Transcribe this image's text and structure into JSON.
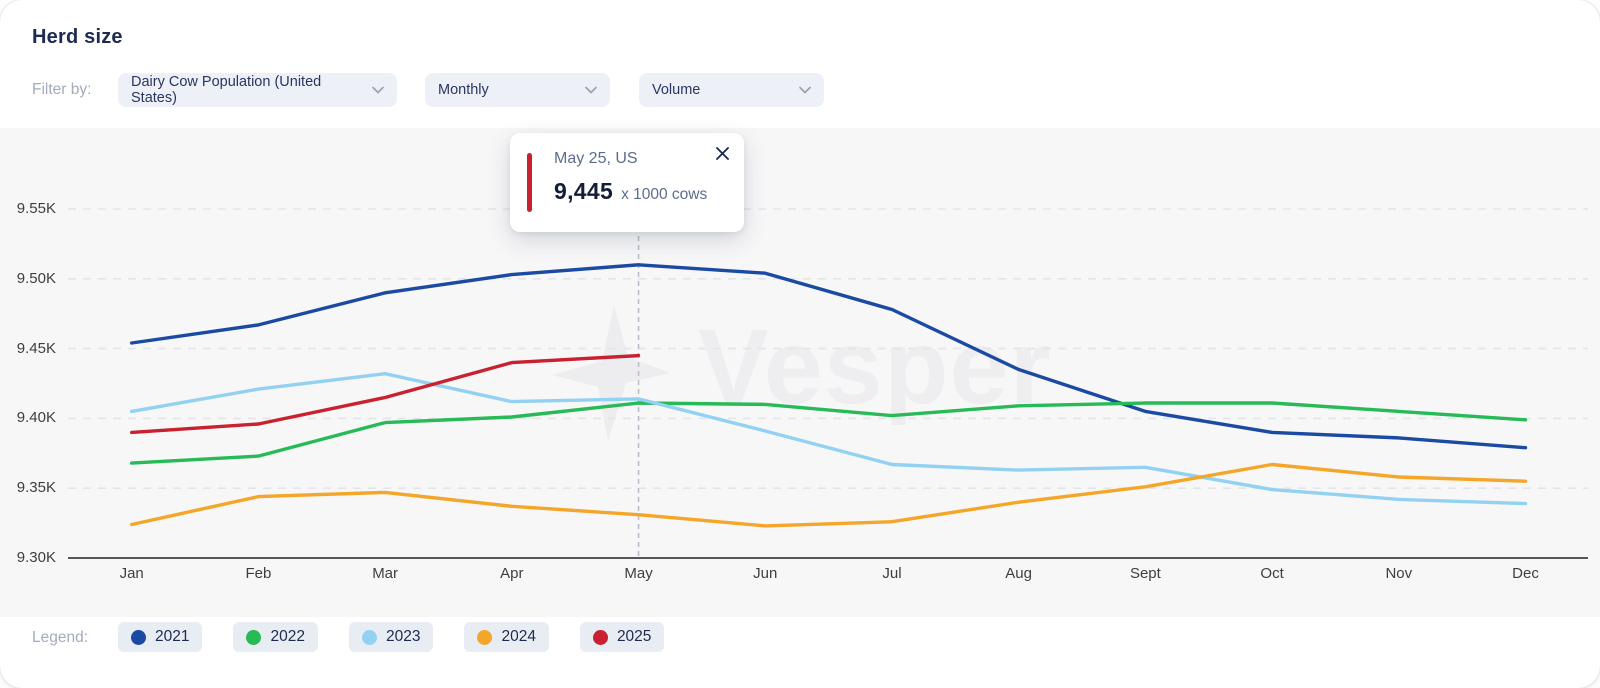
{
  "header": {
    "title": "Herd size"
  },
  "filters": {
    "label": "Filter by:",
    "dropdowns": [
      {
        "label": "Dairy Cow Population (United States)"
      },
      {
        "label": "Monthly"
      },
      {
        "label": "Volume"
      }
    ]
  },
  "tooltip": {
    "title": "May 25, US",
    "value": "9,445",
    "unit": "x 1000 cows",
    "accent_color": "#c9212f"
  },
  "watermark": {
    "text": "Vesper"
  },
  "legend": {
    "label": "Legend:",
    "items": [
      {
        "label": "2021",
        "color": "#1b4aa2"
      },
      {
        "label": "2022",
        "color": "#27ba57"
      },
      {
        "label": "2023",
        "color": "#92d1f1"
      },
      {
        "label": "2024",
        "color": "#f4a62a"
      },
      {
        "label": "2025",
        "color": "#c9212f"
      }
    ]
  },
  "chart_data": {
    "type": "line",
    "title": "Herd size",
    "ylabel": "x 1000 cows",
    "categories": [
      "Jan",
      "Feb",
      "Mar",
      "Apr",
      "May",
      "Jun",
      "Jul",
      "Aug",
      "Sept",
      "Oct",
      "Nov",
      "Dec"
    ],
    "y_ticks": [
      {
        "label": "9.55K",
        "value": 9550
      },
      {
        "label": "9.50K",
        "value": 9500
      },
      {
        "label": "9.45K",
        "value": 9450
      },
      {
        "label": "9.40K",
        "value": 9400
      },
      {
        "label": "9.35K",
        "value": 9350
      },
      {
        "label": "9.30K",
        "value": 9300
      }
    ],
    "ylim": [
      9300,
      9608
    ],
    "grid": true,
    "legend_position": "bottom",
    "series": [
      {
        "name": "2021",
        "color": "#1b4aa2",
        "values": [
          9454,
          9467,
          9490,
          9503,
          9510,
          9504,
          9478,
          9435,
          9405,
          9390,
          9386,
          9379
        ]
      },
      {
        "name": "2022",
        "color": "#27ba57",
        "values": [
          9368,
          9373,
          9397,
          9401,
          9411,
          9410,
          9402,
          9409,
          9411,
          9411,
          9405,
          9399
        ]
      },
      {
        "name": "2023",
        "color": "#92d1f1",
        "values": [
          9405,
          9421,
          9432,
          9412,
          9414,
          9391,
          9367,
          9363,
          9365,
          9349,
          9342,
          9339
        ]
      },
      {
        "name": "2024",
        "color": "#f4a62a",
        "values": [
          9324,
          9344,
          9347,
          9337,
          9331,
          9323,
          9326,
          9340,
          9351,
          9367,
          9358,
          9355
        ]
      },
      {
        "name": "2025",
        "color": "#c9212f",
        "values": [
          9390,
          9396,
          9415,
          9440,
          9445,
          null,
          null,
          null,
          null,
          null,
          null,
          null
        ]
      }
    ],
    "highlight": {
      "category": "May",
      "series": "2025",
      "value": 9445
    }
  }
}
